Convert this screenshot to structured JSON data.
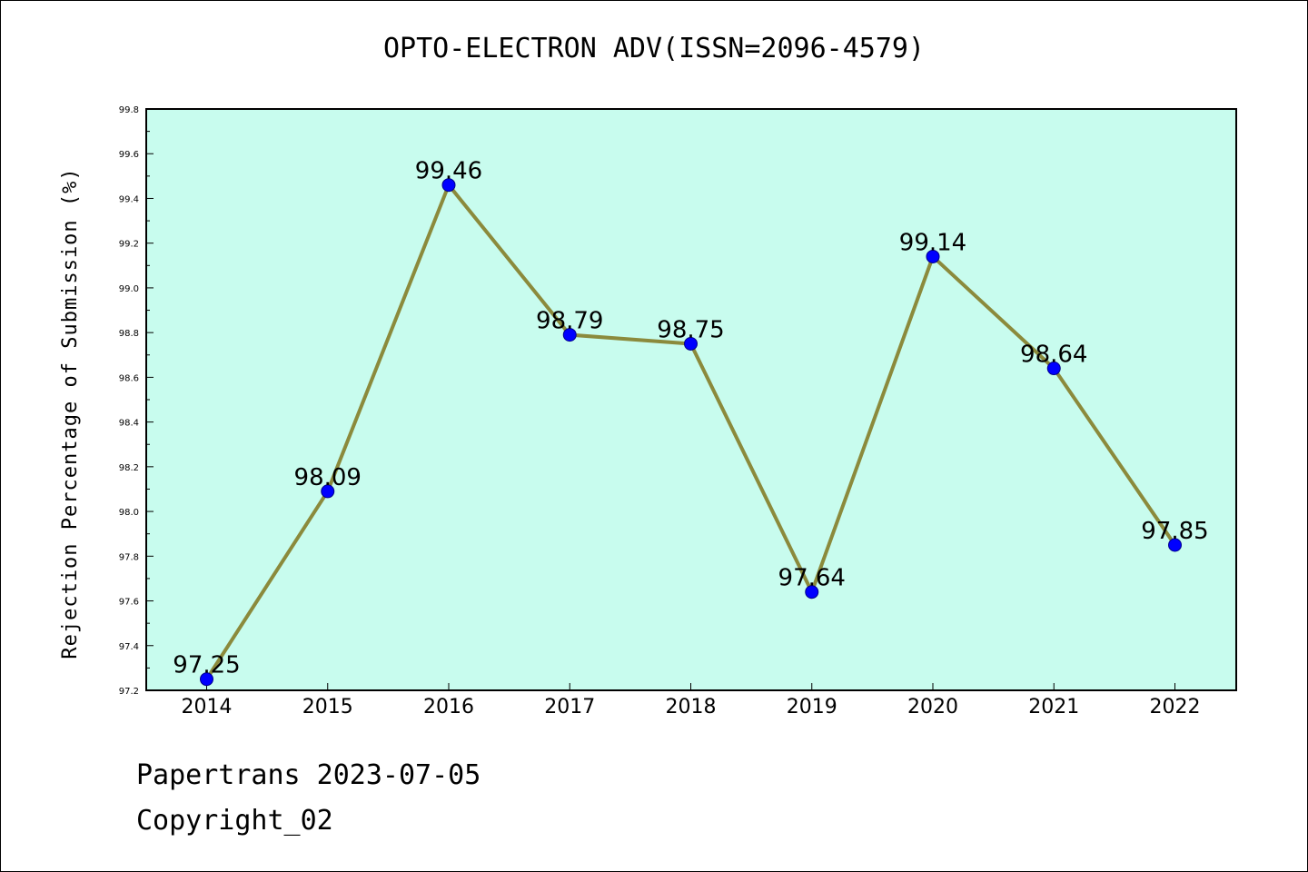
{
  "chart_data": {
    "type": "line",
    "title": "OPTO-ELECTRON ADV(ISSN=2096-4579)",
    "xlabel": "",
    "ylabel": "Rejection Percentage of Submission (%)",
    "categories": [
      "2014",
      "2015",
      "2016",
      "2017",
      "2018",
      "2019",
      "2020",
      "2021",
      "2022"
    ],
    "series": [
      {
        "values": [
          97.25,
          98.09,
          99.46,
          98.79,
          98.75,
          97.64,
          99.14,
          98.64,
          97.85
        ]
      }
    ],
    "data_labels": [
      "97.25",
      "98.09",
      "99.46",
      "98.79",
      "98.75",
      "97.64",
      "99.14",
      "98.64",
      "97.85"
    ],
    "ylim": [
      97.2,
      99.8
    ],
    "yticks": [
      "97.2",
      "97.4",
      "97.6",
      "97.8",
      "98.0",
      "98.2",
      "98.4",
      "98.6",
      "98.8",
      "99.0",
      "99.2",
      "99.4",
      "99.6",
      "99.8"
    ],
    "grid": false,
    "colors": {
      "plot_background": "#c8fcee",
      "line": "#8b8a3c",
      "marker": "#0000ff"
    }
  },
  "footer": {
    "line1": "Papertrans 2023-07-05",
    "line2": "Copyright_02"
  }
}
